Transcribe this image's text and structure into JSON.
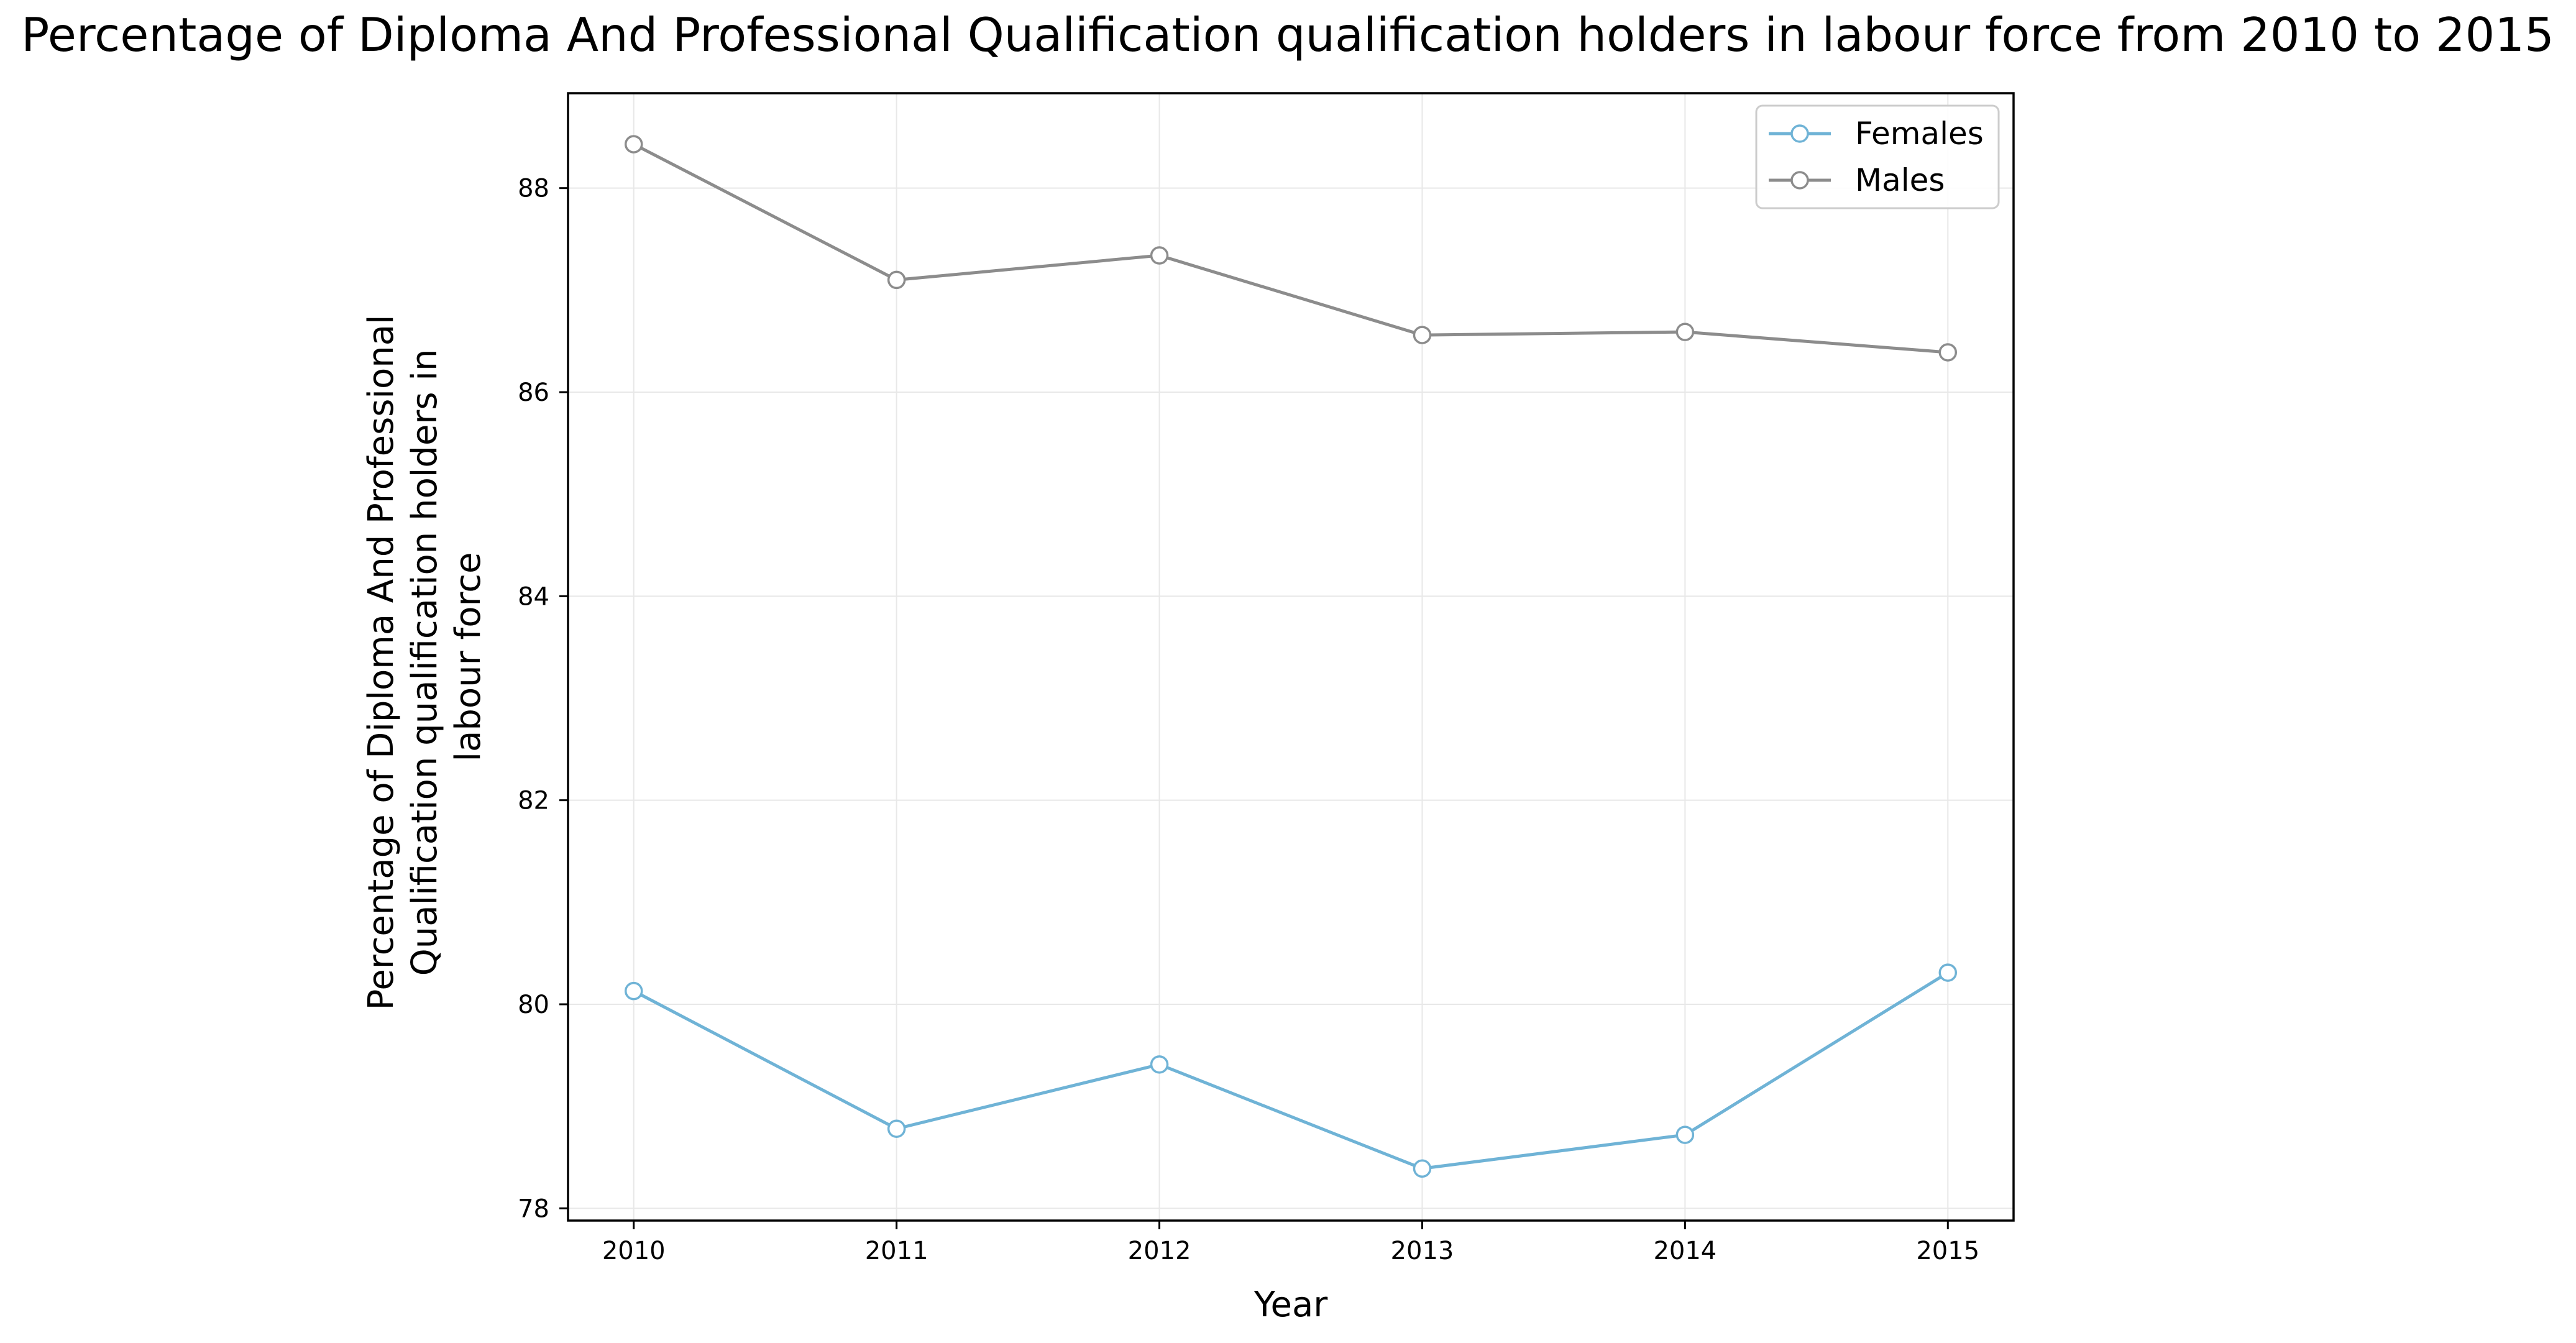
{
  "chart_data": {
    "type": "line",
    "title": "Percentage of Diploma And Professional Qualification qualification holders in labour force from 2010 to 2015",
    "xlabel": "Year",
    "ylabel_lines": [
      "Percentage of Diploma And Professional",
      "Qualification qualification holders in",
      "labour force"
    ],
    "x": [
      2010,
      2011,
      2012,
      2013,
      2014,
      2015
    ],
    "x_tick_labels": [
      "2010",
      "2011",
      "2012",
      "2013",
      "2014",
      "2015"
    ],
    "xlim": [
      2009.75,
      2015.25
    ],
    "y_ticks": [
      78,
      80,
      82,
      84,
      86,
      88
    ],
    "y_tick_labels": [
      "78",
      "80",
      "82",
      "84",
      "86",
      "88"
    ],
    "ylim": [
      77.88,
      88.93
    ],
    "grid": true,
    "legend_position": "top-right",
    "series": [
      {
        "name": "Females",
        "color": "#6fb3d6",
        "marker": "circle-open",
        "values": [
          80.13,
          78.78,
          79.41,
          78.39,
          78.72,
          80.31
        ]
      },
      {
        "name": "Males",
        "color": "#8c8c8c",
        "marker": "circle-open",
        "values": [
          88.43,
          87.1,
          87.34,
          86.56,
          86.59,
          86.39
        ]
      }
    ]
  }
}
